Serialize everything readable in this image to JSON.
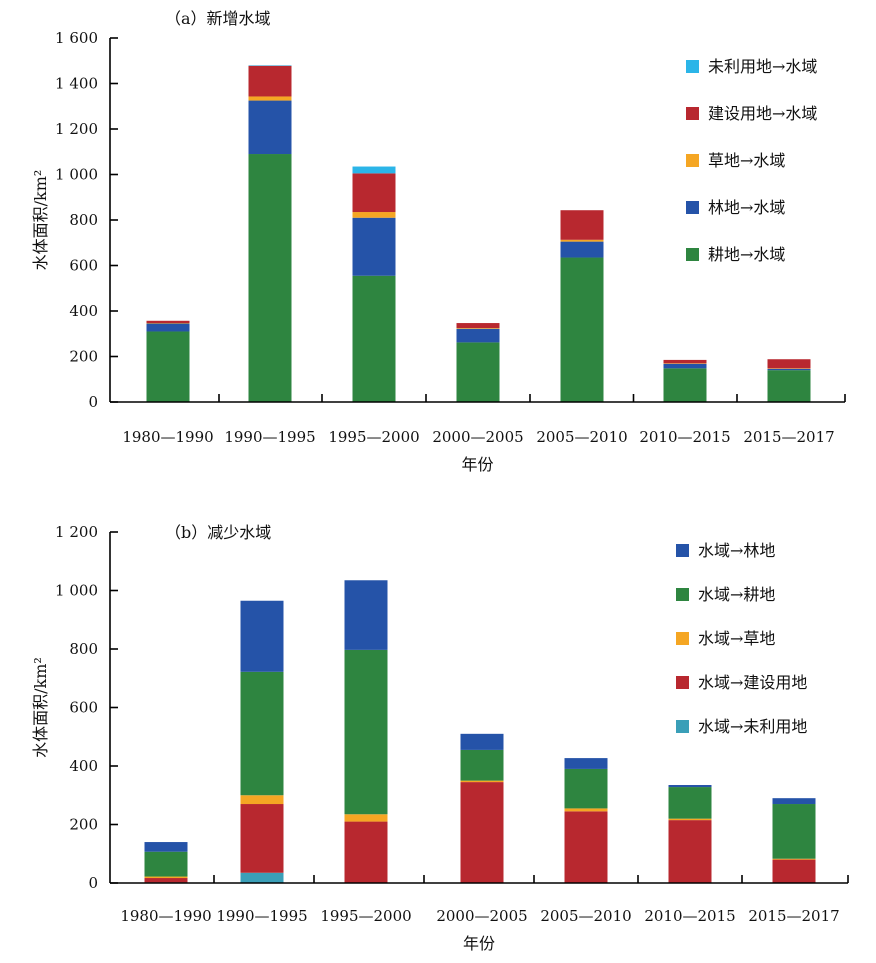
{
  "chart_data": [
    {
      "type": "bar",
      "stacked": true,
      "title": "（a）新增水域",
      "xlabel": "年份",
      "ylabel": "水体面积/km²",
      "ylim": [
        0,
        1600
      ],
      "yticks": [
        0,
        200,
        400,
        600,
        800,
        1000,
        1200,
        1400,
        1600
      ],
      "ytick_labels": [
        "0",
        "200",
        "400",
        "600",
        "800",
        "1 000",
        "1 200",
        "1 400",
        "1 600"
      ],
      "categories": [
        "1980—1990",
        "1990—1995",
        "1995—2000",
        "2000—2005",
        "2005—2010",
        "2010—2015",
        "2015—2017"
      ],
      "series": [
        {
          "name": "耕地→水域",
          "color": "#2e8540",
          "values": [
            310,
            1090,
            555,
            262,
            635,
            148,
            140
          ]
        },
        {
          "name": "林地→水域",
          "color": "#2553a8",
          "values": [
            35,
            235,
            255,
            60,
            70,
            20,
            6
          ]
        },
        {
          "name": "草地→水域",
          "color": "#f5a623",
          "values": [
            2,
            18,
            25,
            3,
            8,
            2,
            2
          ]
        },
        {
          "name": "建设用地→水域",
          "color": "#b8282f",
          "values": [
            10,
            135,
            170,
            22,
            130,
            15,
            40
          ]
        },
        {
          "name": "未利用地→水域",
          "color": "#2bb5e8",
          "values": [
            0,
            2,
            30,
            0,
            0,
            0,
            0
          ]
        }
      ],
      "legend_order": [
        4,
        3,
        2,
        1,
        0
      ],
      "legend": "top-right"
    },
    {
      "type": "bar",
      "stacked": true,
      "title": "（b）减少水域",
      "xlabel": "年份",
      "ylabel": "水体面积/km²",
      "ylim": [
        0,
        1200
      ],
      "yticks": [
        0,
        200,
        400,
        600,
        800,
        1000,
        1200
      ],
      "ytick_labels": [
        "0",
        "200",
        "400",
        "600",
        "800",
        "1 000",
        "1 200"
      ],
      "categories": [
        "1980—1990",
        "1990—1995",
        "1995—2000",
        "2000—2005",
        "2005—2010",
        "2010—2015",
        "2015—2017"
      ],
      "series": [
        {
          "name": "水域→未利用地",
          "color": "#3a9fb8",
          "values": [
            2,
            35,
            0,
            0,
            0,
            0,
            0
          ]
        },
        {
          "name": "水域→建设用地",
          "color": "#b8282f",
          "values": [
            15,
            235,
            210,
            345,
            245,
            215,
            80
          ]
        },
        {
          "name": "水域→草地",
          "color": "#f5a623",
          "values": [
            5,
            30,
            25,
            5,
            10,
            5,
            3
          ]
        },
        {
          "name": "水域→耕地",
          "color": "#2e8540",
          "values": [
            85,
            422,
            562,
            105,
            135,
            108,
            187
          ]
        },
        {
          "name": "水域→林地",
          "color": "#2553a8",
          "values": [
            33,
            243,
            238,
            55,
            37,
            7,
            20
          ]
        }
      ],
      "legend_order": [
        4,
        3,
        2,
        1,
        0
      ],
      "legend": "top-right"
    }
  ]
}
